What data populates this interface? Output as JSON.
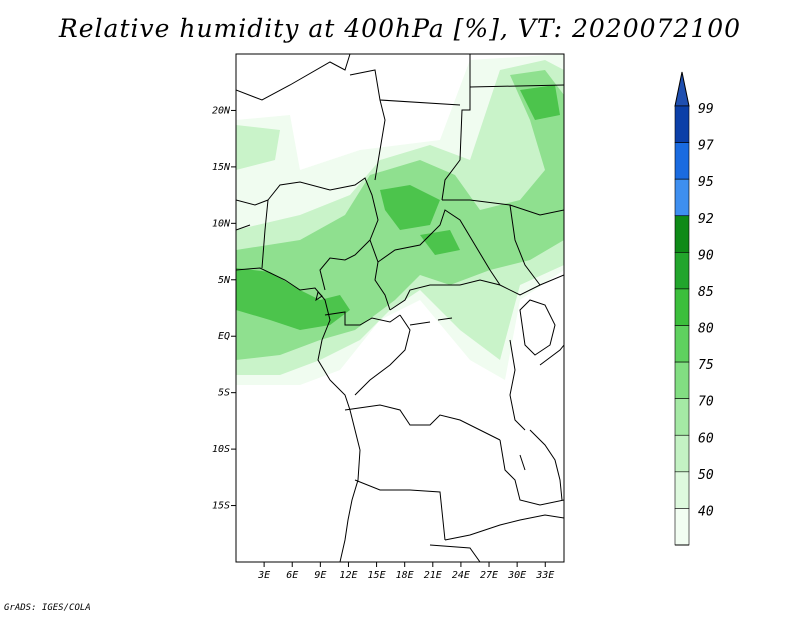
{
  "title": "Relative humidity at 400hPa [%], VT: 2020072100",
  "credit": "GrADS: IGES/COLA",
  "map": {
    "lat_labels": [
      "20N",
      "15N",
      "10N",
      "5N",
      "EQ",
      "5S",
      "10S",
      "15S"
    ],
    "lat_values": [
      20,
      15,
      10,
      5,
      0,
      -5,
      -10,
      -15
    ],
    "lon_labels": [
      "3E",
      "6E",
      "9E",
      "12E",
      "15E",
      "18E",
      "21E",
      "24E",
      "27E",
      "30E",
      "33E"
    ],
    "lon_values": [
      3,
      6,
      9,
      12,
      15,
      18,
      21,
      24,
      27,
      30,
      33
    ],
    "lon_range": [
      0,
      35
    ],
    "lat_range": [
      -20,
      25
    ]
  },
  "colorbar": {
    "labels": [
      "99",
      "97",
      "95",
      "92",
      "90",
      "85",
      "80",
      "75",
      "70",
      "60",
      "50",
      "40"
    ],
    "colors": [
      "#0b3fa8",
      "#1a6be0",
      "#3e8ff0",
      "#0e8a17",
      "#22a52c",
      "#3cbf3c",
      "#5fd15f",
      "#82de82",
      "#a5e9a5",
      "#c4f2c4",
      "#def9de",
      "#f2fdf2"
    ]
  },
  "fill_colors": {
    "level_40": "#f0fcf0",
    "level_60": "#c9f3c9",
    "level_75": "#8fe08f",
    "level_85": "#4cc44c"
  }
}
